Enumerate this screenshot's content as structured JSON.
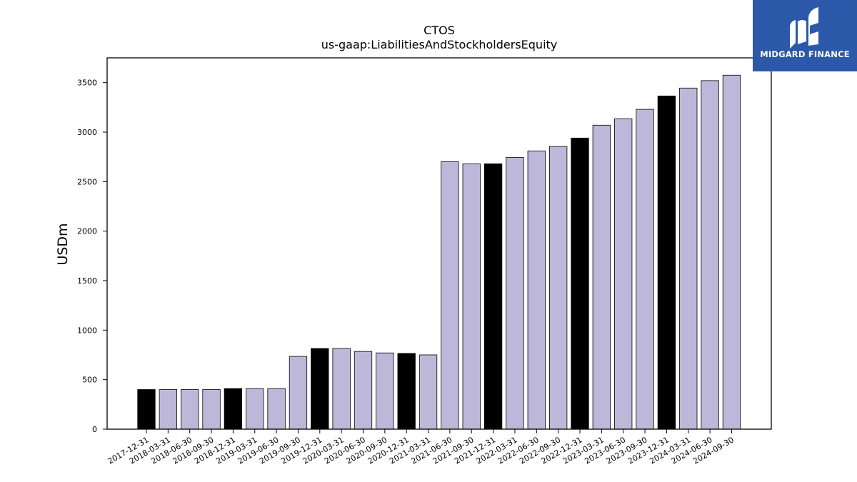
{
  "chart_data": {
    "type": "bar",
    "title": "CTOS",
    "subtitle": "us-gaap:LiabilitiesAndStockholdersEquity",
    "ylabel": "USDm",
    "xlabel": "",
    "ylim": [
      0,
      3750
    ],
    "yticks": [
      0,
      500,
      1000,
      1500,
      2000,
      2500,
      3000,
      3500
    ],
    "grid": false,
    "legend": "none",
    "categories": [
      "2017-12-31",
      "2018-03-31",
      "2018-06-30",
      "2018-09-30",
      "2018-12-31",
      "2019-03-31",
      "2019-06-30",
      "2019-09-30",
      "2019-12-31",
      "2020-03-31",
      "2020-06-30",
      "2020-09-30",
      "2020-12-31",
      "2021-03-31",
      "2021-06-30",
      "2021-09-30",
      "2021-12-31",
      "2022-03-31",
      "2022-06-30",
      "2022-09-30",
      "2022-12-31",
      "2023-03-31",
      "2023-06-30",
      "2023-09-30",
      "2023-12-31",
      "2024-03-31",
      "2024-06-30",
      "2024-09-30"
    ],
    "values": [
      400,
      400,
      400,
      400,
      410,
      410,
      410,
      735,
      815,
      815,
      785,
      770,
      765,
      750,
      2700,
      2680,
      2680,
      2745,
      2810,
      2855,
      2940,
      3070,
      3135,
      3230,
      3365,
      3445,
      3520,
      3575
    ],
    "colors": [
      "#000000",
      "#bdb8d9",
      "#bdb8d9",
      "#bdb8d9",
      "#000000",
      "#bdb8d9",
      "#bdb8d9",
      "#bdb8d9",
      "#000000",
      "#bdb8d9",
      "#bdb8d9",
      "#bdb8d9",
      "#000000",
      "#bdb8d9",
      "#bdb8d9",
      "#bdb8d9",
      "#000000",
      "#bdb8d9",
      "#bdb8d9",
      "#bdb8d9",
      "#000000",
      "#bdb8d9",
      "#bdb8d9",
      "#bdb8d9",
      "#000000",
      "#bdb8d9",
      "#bdb8d9",
      "#bdb8d9"
    ]
  },
  "logo": {
    "text": "MIDGARD FINANCE",
    "background": "#2b58a8"
  }
}
